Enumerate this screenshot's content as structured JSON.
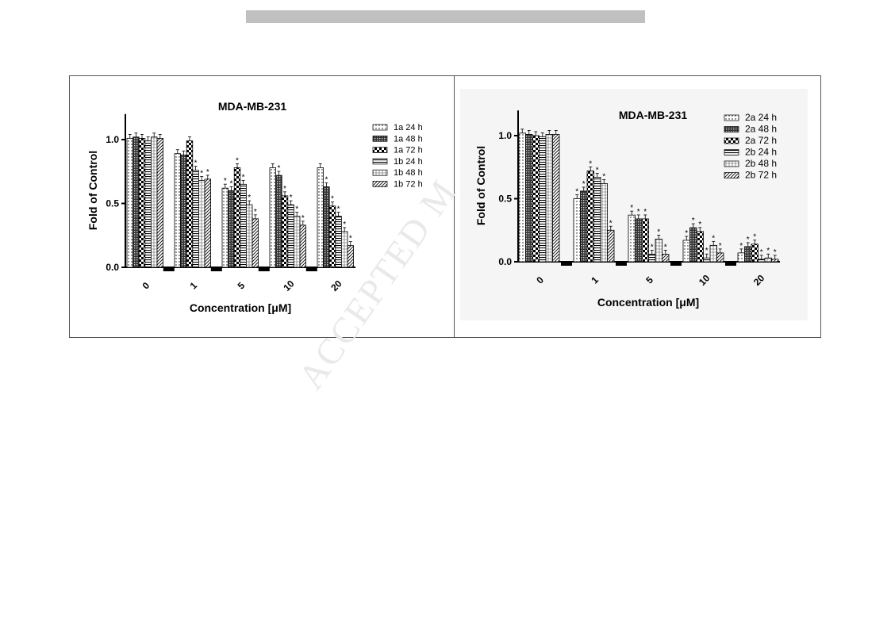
{
  "watermark": "ACCEPTED M",
  "chart_data": [
    {
      "type": "bar",
      "title": "MDA-MB-231",
      "xlabel": "Concentration [μM]",
      "ylabel": "Fold of  Control",
      "ylim": [
        0,
        1.2
      ],
      "yticks": [
        0.0,
        0.5,
        1.0
      ],
      "ytick_labels": [
        "0.0",
        "0.5",
        "1.0"
      ],
      "categories": [
        "0",
        "1",
        "5",
        "10",
        "20"
      ],
      "legend_position": "top-right",
      "series": [
        {
          "name": "1a 24 h",
          "pattern": "dots",
          "values": [
            1.01,
            0.89,
            0.62,
            0.78,
            0.78
          ],
          "significant": [
            false,
            false,
            true,
            false,
            false
          ]
        },
        {
          "name": "1a 48 h",
          "pattern": "crosshatch",
          "values": [
            1.02,
            0.88,
            0.6,
            0.72,
            0.63
          ],
          "significant": [
            false,
            false,
            true,
            true,
            true
          ]
        },
        {
          "name": "1a 72 h",
          "pattern": "checker",
          "values": [
            1.01,
            0.99,
            0.78,
            0.56,
            0.48
          ],
          "significant": [
            false,
            false,
            true,
            true,
            true
          ]
        },
        {
          "name": "1b 24 h",
          "pattern": "hlines",
          "values": [
            0.99,
            0.76,
            0.65,
            0.49,
            0.4
          ],
          "significant": [
            false,
            true,
            true,
            true,
            true
          ]
        },
        {
          "name": "1b 48 h",
          "pattern": "grid",
          "values": [
            1.02,
            0.68,
            0.49,
            0.4,
            0.28
          ],
          "significant": [
            false,
            true,
            true,
            true,
            true
          ]
        },
        {
          "name": "1b 72 h",
          "pattern": "diag",
          "values": [
            1.01,
            0.69,
            0.38,
            0.33,
            0.17
          ],
          "significant": [
            false,
            true,
            true,
            true,
            true
          ]
        }
      ]
    },
    {
      "type": "bar",
      "title": "MDA-MB-231",
      "xlabel": "Concentration [μM]",
      "ylabel": "Fold of  Control",
      "ylim": [
        0,
        1.2
      ],
      "yticks": [
        0.0,
        0.5,
        1.0
      ],
      "ytick_labels": [
        "0.0",
        "0.5",
        "1.0"
      ],
      "categories": [
        "0",
        "1",
        "5",
        "10",
        "20"
      ],
      "legend_position": "top-right",
      "series": [
        {
          "name": "2a 24 h",
          "pattern": "dots",
          "values": [
            1.02,
            0.5,
            0.37,
            0.17,
            0.07
          ],
          "significant": [
            false,
            true,
            true,
            true,
            true
          ]
        },
        {
          "name": "2a 48 h",
          "pattern": "crosshatch",
          "values": [
            1.01,
            0.56,
            0.34,
            0.27,
            0.12
          ],
          "significant": [
            false,
            true,
            true,
            true,
            true
          ]
        },
        {
          "name": "2a 72 h",
          "pattern": "checker",
          "values": [
            1.0,
            0.72,
            0.34,
            0.24,
            0.14
          ],
          "significant": [
            false,
            true,
            true,
            true,
            true
          ]
        },
        {
          "name": "2b 24 h",
          "pattern": "hlines",
          "values": [
            0.99,
            0.67,
            0.06,
            0.03,
            0.02
          ],
          "significant": [
            false,
            true,
            true,
            true,
            true
          ]
        },
        {
          "name": "2b 48 h",
          "pattern": "grid",
          "values": [
            1.01,
            0.62,
            0.18,
            0.13,
            0.03
          ],
          "significant": [
            false,
            true,
            true,
            true,
            true
          ]
        },
        {
          "name": "2b 72 h",
          "pattern": "diag",
          "values": [
            1.01,
            0.25,
            0.06,
            0.07,
            0.02
          ],
          "significant": [
            false,
            true,
            true,
            true,
            true
          ]
        }
      ]
    }
  ]
}
